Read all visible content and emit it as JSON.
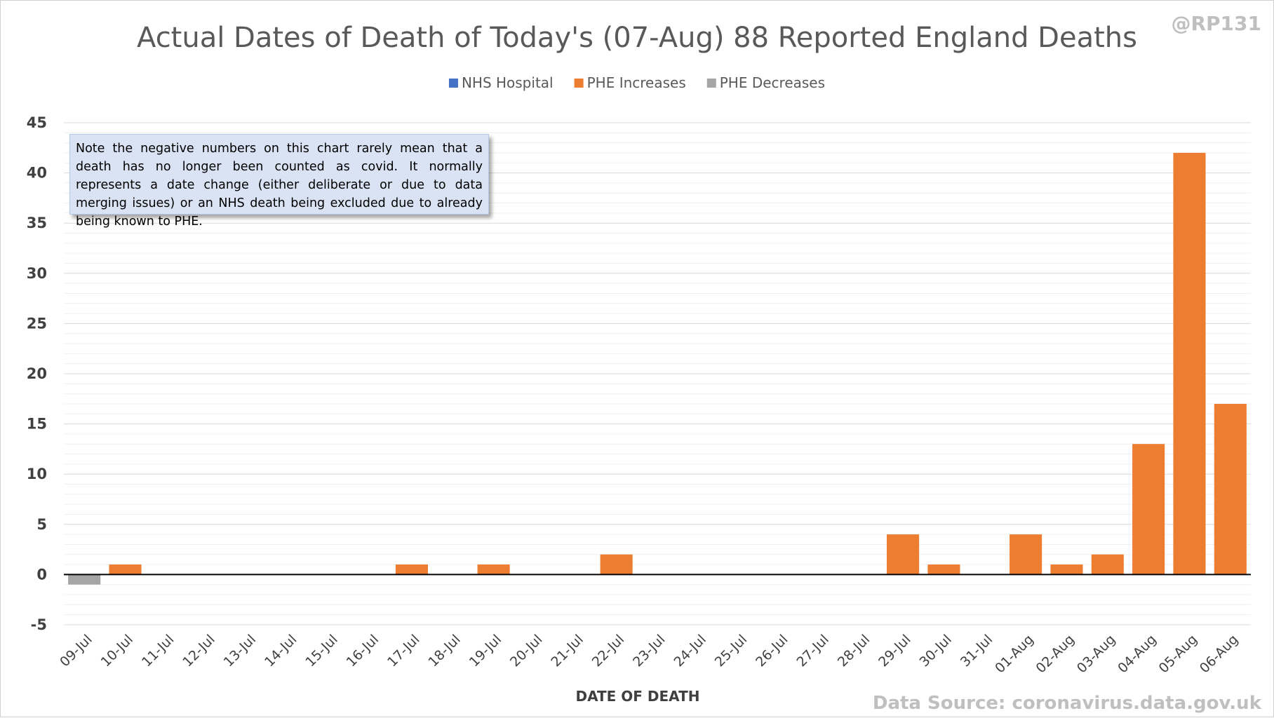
{
  "chart_data": {
    "type": "bar",
    "title": "Actual Dates of Death of Today's (07-Aug) 88 Reported England Deaths",
    "watermark": "@RP131",
    "xlabel": "DATE OF DEATH",
    "ylabel": "",
    "source": "Data Source: coronavirus.data.gov.uk",
    "note": "Note the negative numbers on this chart rarely mean that a death has no longer been counted as covid. It normally represents a date change (either deliberate or due to data merging issues) or an NHS death being excluded due to already being known to PHE.",
    "ylim": [
      -5,
      45
    ],
    "yticks": [
      -5,
      0,
      5,
      10,
      15,
      20,
      25,
      30,
      35,
      40,
      45
    ],
    "minor_gridlines": true,
    "legend_position": "top-center",
    "stacked": true,
    "categories": [
      "09-Jul",
      "10-Jul",
      "11-Jul",
      "12-Jul",
      "13-Jul",
      "14-Jul",
      "15-Jul",
      "16-Jul",
      "17-Jul",
      "18-Jul",
      "19-Jul",
      "20-Jul",
      "21-Jul",
      "22-Jul",
      "23-Jul",
      "24-Jul",
      "25-Jul",
      "26-Jul",
      "27-Jul",
      "28-Jul",
      "29-Jul",
      "30-Jul",
      "31-Jul",
      "01-Aug",
      "02-Aug",
      "03-Aug",
      "04-Aug",
      "05-Aug",
      "06-Aug"
    ],
    "series": [
      {
        "name": "NHS Hospital",
        "color": "#4472c4",
        "values": [
          0,
          0,
          0,
          0,
          0,
          0,
          0,
          0,
          0,
          0,
          0,
          0,
          0,
          0,
          0,
          0,
          0,
          0,
          0,
          0,
          0,
          0,
          0,
          0,
          0,
          0,
          0,
          0,
          0
        ]
      },
      {
        "name": "PHE Increases",
        "color": "#ed7d31",
        "values": [
          0,
          1,
          0,
          0,
          0,
          0,
          0,
          0,
          1,
          0,
          1,
          0,
          0,
          2,
          0,
          0,
          0,
          0,
          0,
          0,
          4,
          1,
          0,
          4,
          1,
          2,
          13,
          42,
          17
        ]
      },
      {
        "name": "PHE Decreases",
        "color": "#a5a5a5",
        "values": [
          -1,
          0,
          0,
          0,
          0,
          0,
          0,
          0,
          0,
          0,
          0,
          0,
          0,
          0,
          0,
          0,
          0,
          0,
          0,
          0,
          0,
          0,
          0,
          0,
          0,
          0,
          0,
          0,
          0
        ]
      }
    ]
  }
}
